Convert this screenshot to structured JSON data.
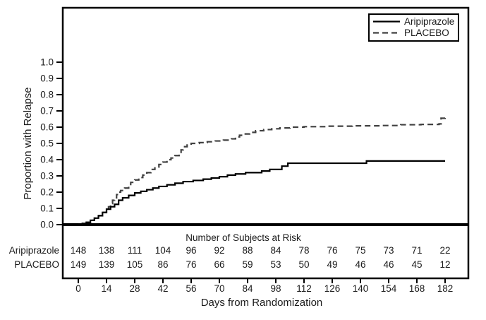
{
  "figure": {
    "background": "#ffffff",
    "frame_color": "#000000"
  },
  "chart_data": {
    "type": "line",
    "subtype": "kaplan-meier-step",
    "title": "",
    "xlabel": "Days from Randomization",
    "ylabel": "Proportion with Relapse",
    "xlim": [
      0,
      182
    ],
    "ylim": [
      0.0,
      1.0
    ],
    "x_ticks": [
      0,
      14,
      28,
      42,
      56,
      70,
      84,
      98,
      112,
      126,
      140,
      154,
      168,
      182
    ],
    "y_ticks": [
      0.0,
      0.1,
      0.2,
      0.3,
      0.4,
      0.5,
      0.6,
      0.7,
      0.8,
      0.9,
      1.0
    ],
    "grid": false,
    "legend_position": "top-right",
    "series": [
      {
        "name": "Aripiprazole",
        "style": "solid",
        "color": "#000000",
        "step_points": [
          [
            0,
            0
          ],
          [
            2,
            0.007
          ],
          [
            4,
            0.014
          ],
          [
            6,
            0.027
          ],
          [
            8,
            0.04
          ],
          [
            10,
            0.055
          ],
          [
            12,
            0.075
          ],
          [
            14,
            0.095
          ],
          [
            16,
            0.11
          ],
          [
            18,
            0.125
          ],
          [
            20,
            0.15
          ],
          [
            22,
            0.165
          ],
          [
            25,
            0.18
          ],
          [
            28,
            0.195
          ],
          [
            31,
            0.205
          ],
          [
            34,
            0.215
          ],
          [
            37,
            0.225
          ],
          [
            40,
            0.235
          ],
          [
            44,
            0.245
          ],
          [
            48,
            0.255
          ],
          [
            52,
            0.265
          ],
          [
            57,
            0.272
          ],
          [
            62,
            0.28
          ],
          [
            66,
            0.287
          ],
          [
            70,
            0.295
          ],
          [
            74,
            0.305
          ],
          [
            78,
            0.312
          ],
          [
            83,
            0.32
          ],
          [
            91,
            0.33
          ],
          [
            95,
            0.34
          ],
          [
            101,
            0.36
          ],
          [
            104,
            0.378
          ],
          [
            143,
            0.392
          ],
          [
            182,
            0.392
          ]
        ]
      },
      {
        "name": "PLACEBO",
        "style": "dashed",
        "color": "#414141",
        "step_points": [
          [
            0,
            0
          ],
          [
            2,
            0.007
          ],
          [
            4,
            0.014
          ],
          [
            6,
            0.027
          ],
          [
            8,
            0.04
          ],
          [
            10,
            0.055
          ],
          [
            12,
            0.075
          ],
          [
            14,
            0.095
          ],
          [
            15,
            0.11
          ],
          [
            16,
            0.13
          ],
          [
            17,
            0.15
          ],
          [
            18,
            0.165
          ],
          [
            19,
            0.185
          ],
          [
            20,
            0.2
          ],
          [
            21,
            0.21
          ],
          [
            23,
            0.225
          ],
          [
            25,
            0.24
          ],
          [
            26,
            0.26
          ],
          [
            28,
            0.275
          ],
          [
            30,
            0.29
          ],
          [
            32,
            0.305
          ],
          [
            34,
            0.32
          ],
          [
            36,
            0.34
          ],
          [
            38,
            0.355
          ],
          [
            40,
            0.37
          ],
          [
            42,
            0.385
          ],
          [
            44,
            0.4
          ],
          [
            46,
            0.41
          ],
          [
            48,
            0.425
          ],
          [
            50,
            0.44
          ],
          [
            51,
            0.46
          ],
          [
            52,
            0.48
          ],
          [
            54,
            0.49
          ],
          [
            56,
            0.5
          ],
          [
            60,
            0.505
          ],
          [
            64,
            0.51
          ],
          [
            68,
            0.515
          ],
          [
            72,
            0.52
          ],
          [
            76,
            0.528
          ],
          [
            78,
            0.54
          ],
          [
            80,
            0.55
          ],
          [
            82,
            0.558
          ],
          [
            85,
            0.568
          ],
          [
            88,
            0.578
          ],
          [
            92,
            0.585
          ],
          [
            96,
            0.59
          ],
          [
            100,
            0.595
          ],
          [
            105,
            0.6
          ],
          [
            112,
            0.603
          ],
          [
            124,
            0.606
          ],
          [
            136,
            0.608
          ],
          [
            150,
            0.61
          ],
          [
            160,
            0.615
          ],
          [
            170,
            0.617
          ],
          [
            179,
            0.62
          ],
          [
            180,
            0.655
          ],
          [
            182,
            0.658
          ]
        ]
      }
    ],
    "risk_table": {
      "title": "Number of Subjects at Risk",
      "days": [
        0,
        14,
        28,
        42,
        56,
        70,
        84,
        98,
        112,
        126,
        140,
        154,
        168,
        182
      ],
      "rows": [
        {
          "label": "Aripiprazole",
          "values": [
            148,
            138,
            111,
            104,
            96,
            92,
            88,
            84,
            78,
            76,
            75,
            73,
            71,
            22
          ]
        },
        {
          "label": "PLACEBO",
          "values": [
            149,
            139,
            105,
            86,
            76,
            66,
            59,
            53,
            50,
            49,
            46,
            46,
            45,
            12
          ]
        }
      ]
    }
  }
}
